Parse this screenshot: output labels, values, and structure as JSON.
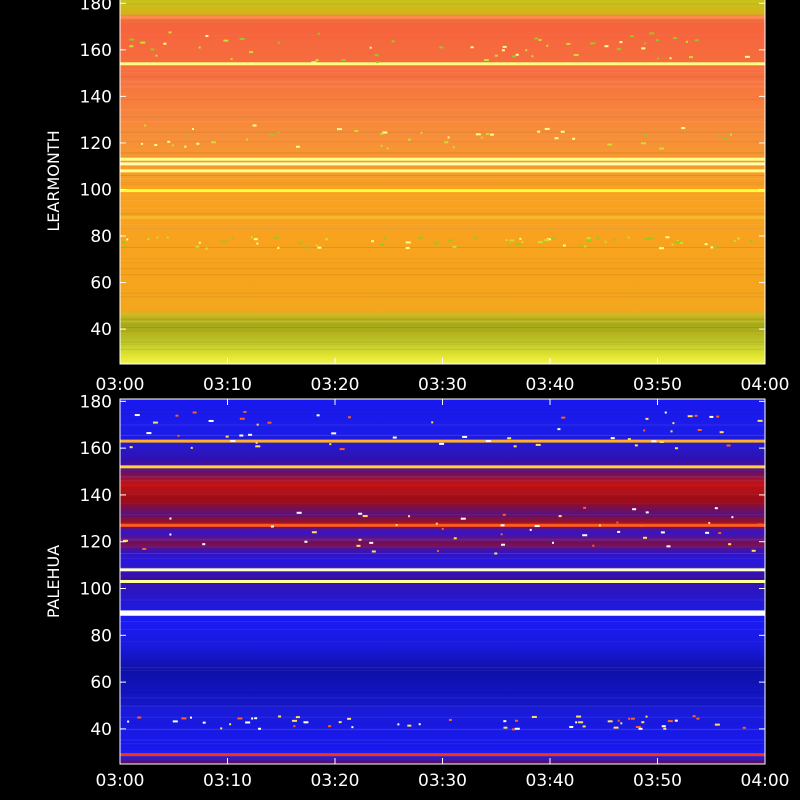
{
  "chart_data": [
    {
      "type": "heatmap",
      "station": "LEARMONTH",
      "ylabel": "LEARMONTH",
      "xlabel": "",
      "title": "",
      "x_ticks": [
        "03:00",
        "03:10",
        "03:20",
        "03:30",
        "03:40",
        "03:50",
        "04:00"
      ],
      "x_range_minutes": [
        0,
        60
      ],
      "y_ticks": [
        40,
        60,
        80,
        100,
        120,
        140,
        160,
        180
      ],
      "ylim": [
        25,
        180
      ],
      "colormap": "yellow-orange",
      "base_color": "#f7a51f",
      "intensity_profile": [
        {
          "y": 25,
          "color": "#f1f15a"
        },
        {
          "y": 28,
          "color": "#e4e833"
        },
        {
          "y": 33,
          "color": "#c5cd2a"
        },
        {
          "y": 38,
          "color": "#b2b21a"
        },
        {
          "y": 42,
          "color": "#a6aa18"
        },
        {
          "y": 46,
          "color": "#c9b820"
        },
        {
          "y": 48,
          "color": "#f2a61e"
        },
        {
          "y": 62,
          "color": "#f7a41c"
        },
        {
          "y": 100,
          "color": "#f8a020"
        },
        {
          "y": 110,
          "color": "#f79a2e"
        },
        {
          "y": 125,
          "color": "#f78d3a"
        },
        {
          "y": 150,
          "color": "#f76f40"
        },
        {
          "y": 160,
          "color": "#f66a3e"
        },
        {
          "y": 172,
          "color": "#f6623c"
        },
        {
          "y": 176,
          "color": "#d4b21a"
        },
        {
          "y": 180,
          "color": "#c9c21c"
        }
      ],
      "bright_lines": [
        {
          "y": 99.5,
          "color": "#ffff3c"
        },
        {
          "y": 108,
          "color": "#ffff8c"
        },
        {
          "y": 111,
          "color": "#ffffb0"
        },
        {
          "y": 113,
          "color": "#ffff8c"
        },
        {
          "y": 154,
          "color": "#ffff80"
        },
        {
          "y": 88,
          "color": "#f7b830"
        },
        {
          "y": 174,
          "color": "#ff8a52"
        }
      ]
    },
    {
      "type": "heatmap",
      "station": "PALEHUA",
      "ylabel": "PALEHUA",
      "xlabel": "",
      "title": "",
      "x_ticks": [
        "03:00",
        "03:10",
        "03:20",
        "03:30",
        "03:40",
        "03:50",
        "04:00"
      ],
      "x_range_minutes": [
        0,
        60
      ],
      "y_ticks": [
        40,
        60,
        80,
        100,
        120,
        140,
        160,
        180
      ],
      "ylim": [
        25,
        181
      ],
      "colormap": "blue-red-white",
      "base_color": "#1010e8",
      "intensity_profile": [
        {
          "y": 25,
          "color": "#6a0a40"
        },
        {
          "y": 28,
          "color": "#2020e8"
        },
        {
          "y": 32,
          "color": "#1818f0"
        },
        {
          "y": 48,
          "color": "#1a1ad8"
        },
        {
          "y": 55,
          "color": "#1214c0"
        },
        {
          "y": 65,
          "color": "#1010a8"
        },
        {
          "y": 76,
          "color": "#1a1ae0"
        },
        {
          "y": 86,
          "color": "#1a1af4"
        },
        {
          "y": 95,
          "color": "#2418d0"
        },
        {
          "y": 105,
          "color": "#3a10a8"
        },
        {
          "y": 112,
          "color": "#2618e0"
        },
        {
          "y": 116,
          "color": "#3a12b8"
        },
        {
          "y": 119,
          "color": "#80104c"
        },
        {
          "y": 124,
          "color": "#3414c8"
        },
        {
          "y": 128,
          "color": "#a01018"
        },
        {
          "y": 132,
          "color": "#5a1080"
        },
        {
          "y": 137,
          "color": "#9a0c1c"
        },
        {
          "y": 145,
          "color": "#c01212"
        },
        {
          "y": 150,
          "color": "#601070"
        },
        {
          "y": 155,
          "color": "#3010b0"
        },
        {
          "y": 160,
          "color": "#2818c8"
        },
        {
          "y": 166,
          "color": "#1c1ce8"
        },
        {
          "y": 181,
          "color": "#1818f0"
        }
      ],
      "bright_lines": [
        {
          "y": 89,
          "color": "#ffffff"
        },
        {
          "y": 90,
          "color": "#ffffff"
        },
        {
          "y": 103,
          "color": "#ffff9a"
        },
        {
          "y": 108,
          "color": "#ffffc8"
        },
        {
          "y": 127,
          "color": "#ff5a20"
        },
        {
          "y": 152,
          "color": "#ffd040"
        },
        {
          "y": 163,
          "color": "#ffb028"
        },
        {
          "y": 29,
          "color": "#ff3010"
        }
      ]
    }
  ]
}
